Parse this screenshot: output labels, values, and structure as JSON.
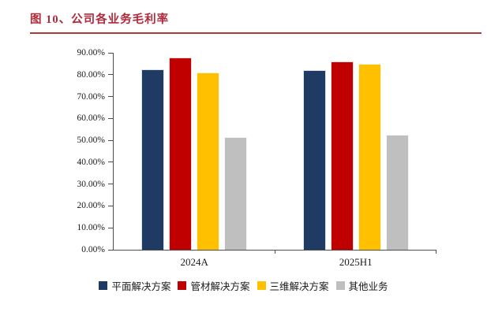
{
  "figure": {
    "title": "图 10、公司各业务毛利率",
    "title_color": "#B02A3B",
    "rule_color": "#A93B3B"
  },
  "chart_data": {
    "type": "bar",
    "title": "公司各业务毛利率",
    "categories": [
      "2024A",
      "2025H1"
    ],
    "series": [
      {
        "name": "平面解决方案",
        "color": "#1F3B63",
        "values": [
          82.6,
          82.0
        ]
      },
      {
        "name": "管材解决方案",
        "color": "#C00000",
        "values": [
          87.9,
          86.1
        ]
      },
      {
        "name": "三维解决方案",
        "color": "#FFC000",
        "values": [
          81.0,
          84.9
        ]
      },
      {
        "name": "其他业务",
        "color": "#BFBFBF",
        "values": [
          51.6,
          52.7
        ]
      }
    ],
    "xlabel": "",
    "ylabel": "",
    "ylim": [
      0,
      90
    ],
    "y_tick_step": 10,
    "y_tick_labels": [
      "0.00%",
      "10.00%",
      "20.00%",
      "30.00%",
      "40.00%",
      "50.00%",
      "60.00%",
      "70.00%",
      "80.00%",
      "90.00%"
    ],
    "grid": false,
    "legend_position": "bottom",
    "axis_color": "#4d4d4d"
  }
}
